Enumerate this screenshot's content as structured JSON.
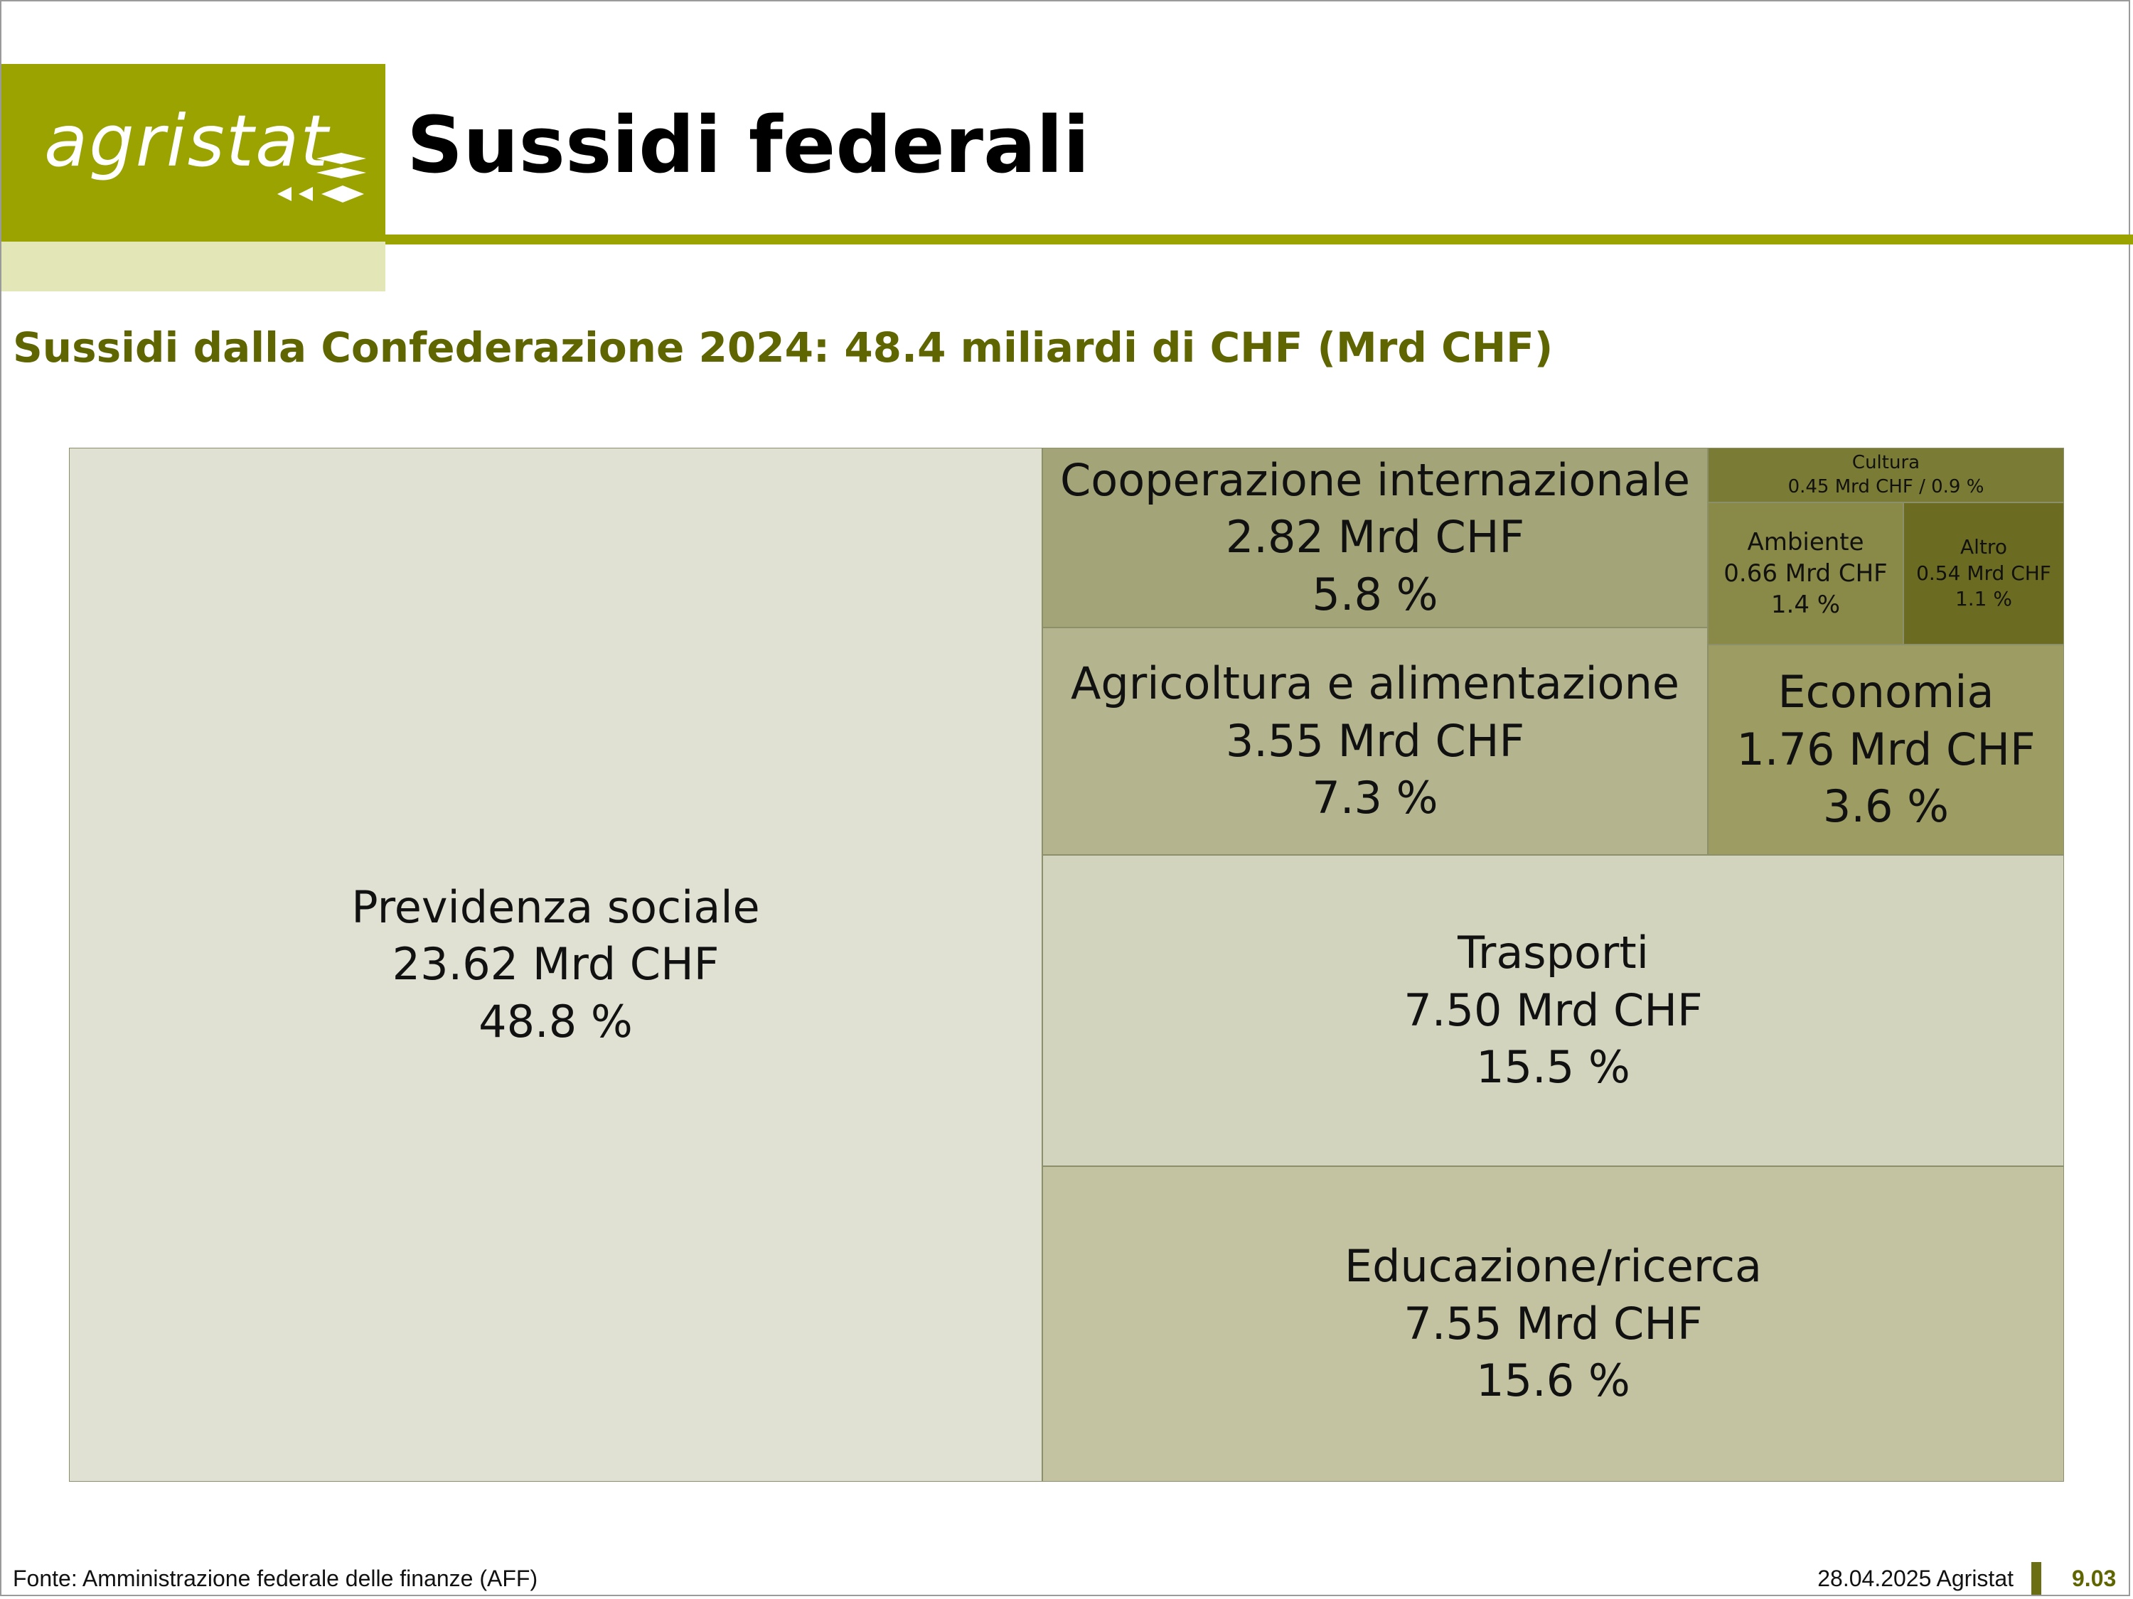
{
  "header": {
    "logo_text": "agristat",
    "title": "Sussidi federali"
  },
  "colors": {
    "brand": "#9aa300",
    "brand_light": "#e3e6b6",
    "subtitle": "#5f6500"
  },
  "chart_data": {
    "type": "treemap",
    "title": "Sussidi dalla Confederazione 2024: 48.4 miliardi di CHF (Mrd CHF)",
    "unit": "Mrd CHF",
    "items": [
      {
        "name": "Previdenza sociale",
        "value": 23.62,
        "value_label": "23.62 Mrd CHF",
        "share_label": "48.8 %",
        "color": "#e0e1d2"
      },
      {
        "name": "Educazione/ricerca",
        "value": 7.55,
        "value_label": "7.55 Mrd CHF",
        "share_label": "15.6 %",
        "color": "#c3c3a2"
      },
      {
        "name": "Trasporti",
        "value": 7.5,
        "value_label": "7.50 Mrd CHF",
        "share_label": "15.5 %",
        "color": "#d3d4be"
      },
      {
        "name": "Agricoltura e alimentazione",
        "value": 3.55,
        "value_label": "3.55 Mrd CHF",
        "share_label": "7.3 %",
        "color": "#b4b58f"
      },
      {
        "name": "Cooperazione internazionale",
        "value": 2.82,
        "value_label": "2.82 Mrd CHF",
        "share_label": "5.8 %",
        "color": "#a3a478"
      },
      {
        "name": "Economia",
        "value": 1.76,
        "value_label": "1.76 Mrd CHF",
        "share_label": "3.6 %",
        "color": "#9c9c63"
      },
      {
        "name": "Ambiente",
        "value": 0.66,
        "value_label": "0.66 Mrd CHF",
        "share_label": "1.4 %",
        "color": "#8a8a48"
      },
      {
        "name": "Altro",
        "value": 0.54,
        "value_label": "0.54 Mrd CHF",
        "share_label": "1.1 %",
        "color": "#6b6c22"
      },
      {
        "name": "Cultura",
        "value": 0.45,
        "value_label": "0.45 Mrd CHF / 0.9 %",
        "share_label": "",
        "color": "#7a7c35"
      }
    ]
  },
  "footer": {
    "source": "Fonte: Amministrazione federale delle finanze (AFF)",
    "date": "28.04.2025 Agristat",
    "page": "9.03"
  }
}
